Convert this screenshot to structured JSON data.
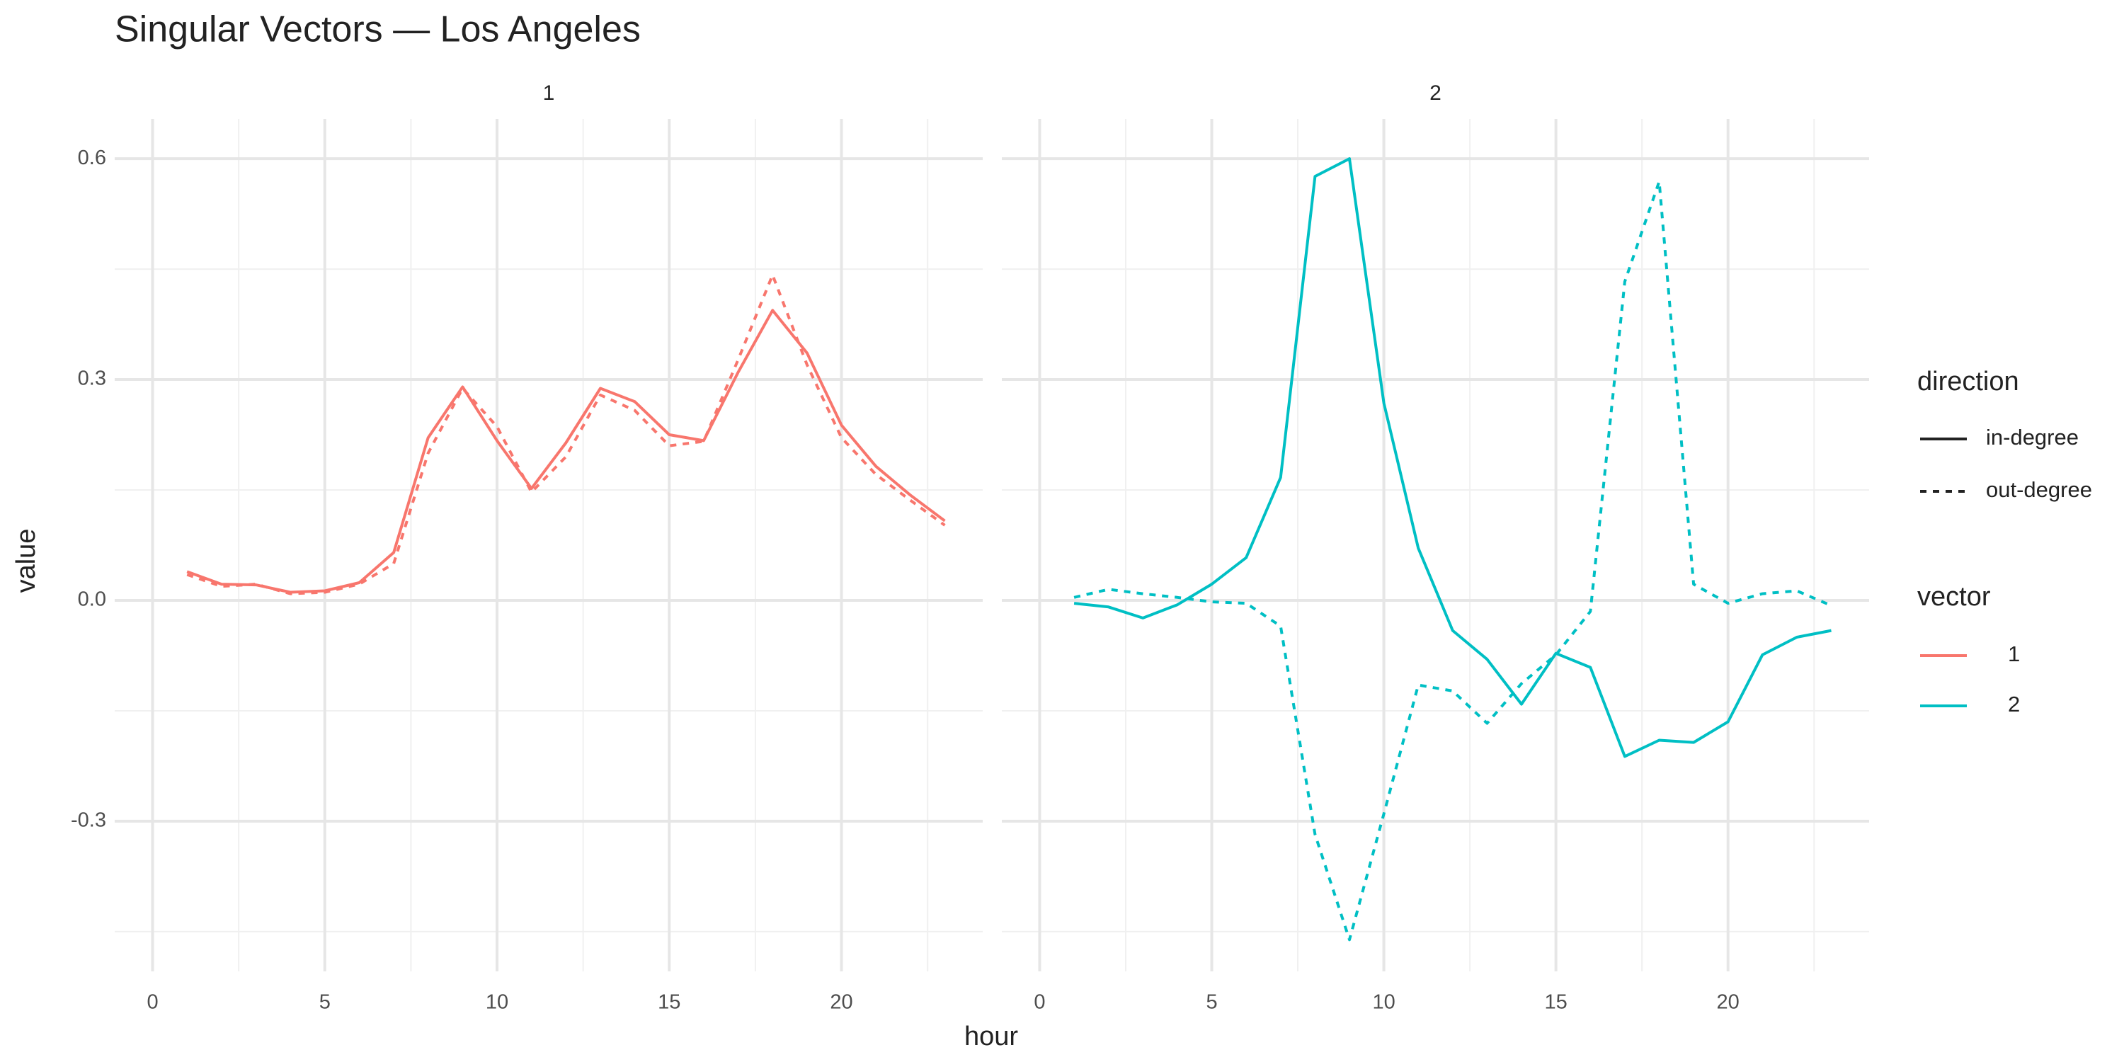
{
  "chart_data": {
    "type": "line",
    "title": "Singular Vectors — Los Angeles",
    "x_label": "hour",
    "y_label": "value",
    "x": [
      1,
      2,
      3,
      4,
      5,
      6,
      7,
      8,
      9,
      10,
      11,
      12,
      13,
      14,
      15,
      16,
      17,
      18,
      19,
      20,
      21,
      22,
      23
    ],
    "xlim": [
      -1.1,
      24.1
    ],
    "xticks": [
      0,
      5,
      10,
      15,
      20
    ],
    "x_minor_ticks": [
      2.5,
      7.5,
      12.5,
      17.5,
      22.5
    ],
    "ylim": [
      -0.504,
      0.654
    ],
    "yticks": [
      -0.3,
      {
        "value": 0,
        "label": "0.0"
      },
      0.3,
      0.6
    ],
    "y_minor_ticks": [
      -0.45,
      -0.15,
      0.15,
      0.45
    ],
    "grid": true,
    "legend_position": "right",
    "linestyle_legend_title": "direction",
    "color_legend_title": "vector",
    "facets": [
      {
        "title": "1",
        "color": "#F8766D",
        "series": [
          {
            "name": "in-degree",
            "linestyle": "solid",
            "values": [
              0.039,
              0.022,
              0.021,
              0.011,
              0.013,
              0.024,
              0.065,
              0.221,
              0.29,
              0.217,
              0.152,
              0.214,
              0.288,
              0.27,
              0.225,
              0.217,
              0.31,
              0.394,
              0.336,
              0.238,
              0.182,
              0.143,
              0.108
            ]
          },
          {
            "name": "out-degree",
            "linestyle": "dashed",
            "values": [
              0.035,
              0.019,
              0.022,
              0.009,
              0.011,
              0.022,
              0.05,
              0.2,
              0.288,
              0.236,
              0.147,
              0.195,
              0.279,
              0.258,
              0.21,
              0.216,
              0.327,
              0.442,
              0.32,
              0.221,
              0.171,
              0.136,
              0.102
            ]
          }
        ]
      },
      {
        "title": "2",
        "color": "#00BFC4",
        "series": [
          {
            "name": "in-degree",
            "linestyle": "solid",
            "values": [
              -0.004,
              -0.009,
              -0.024,
              -0.006,
              0.022,
              0.058,
              0.167,
              0.576,
              0.6,
              0.268,
              0.071,
              -0.041,
              -0.08,
              -0.141,
              -0.072,
              -0.091,
              -0.212,
              -0.19,
              -0.193,
              -0.165,
              -0.074,
              -0.05,
              -0.041
            ]
          },
          {
            "name": "out-degree",
            "linestyle": "dashed",
            "values": [
              0.004,
              0.015,
              0.009,
              0.004,
              -0.002,
              -0.004,
              -0.035,
              -0.318,
              -0.461,
              -0.29,
              -0.115,
              -0.123,
              -0.167,
              -0.113,
              -0.074,
              -0.015,
              0.433,
              0.569,
              0.022,
              -0.004,
              0.009,
              0.013,
              -0.007
            ]
          }
        ]
      }
    ]
  }
}
